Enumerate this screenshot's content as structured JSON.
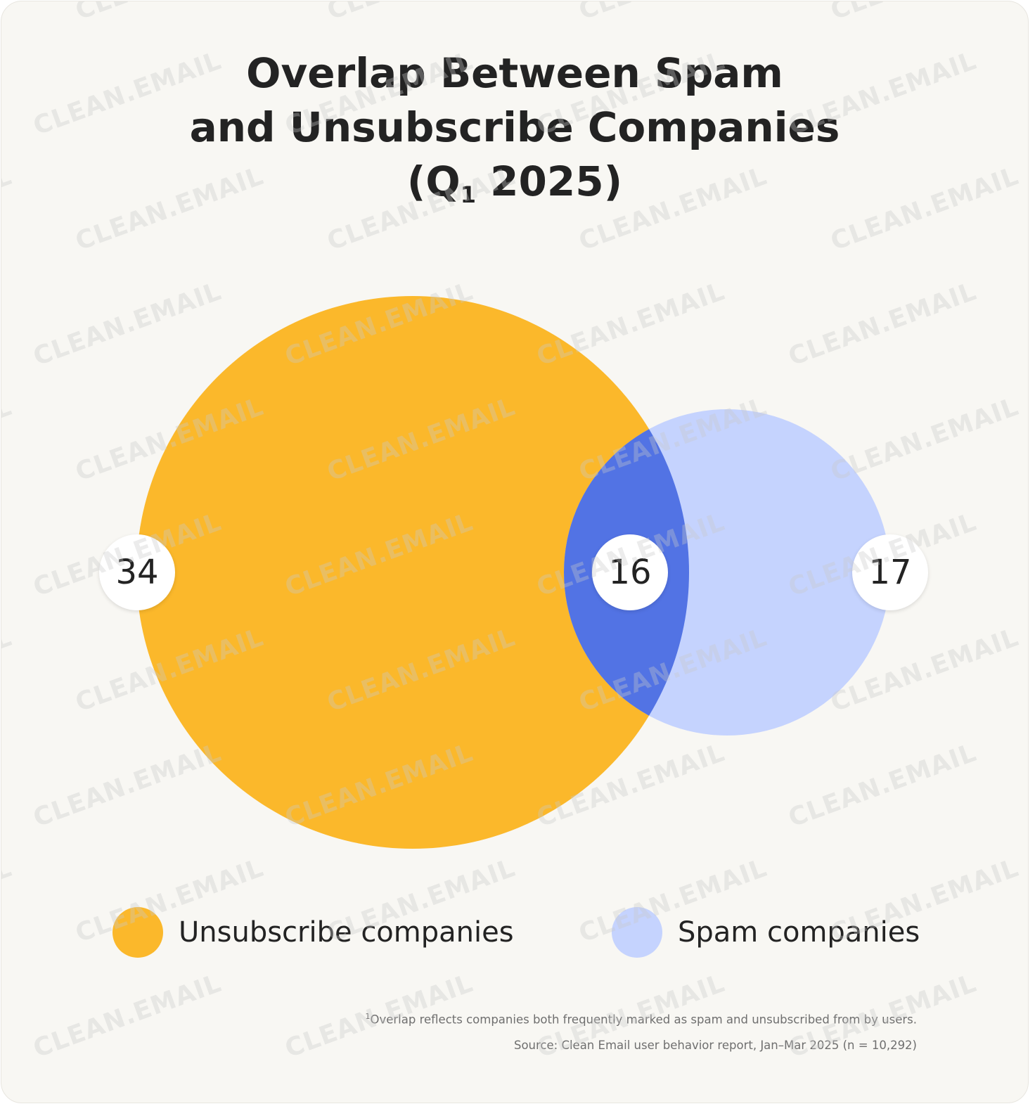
{
  "chart_data": {
    "type": "venn",
    "title": {
      "line1": "Overlap Between Spam",
      "line2": "and Unsubscribe Companies",
      "line3_open": "(Q",
      "line3_sub": "1",
      "line3_close": " 2025)"
    },
    "sets": [
      {
        "name": "Unsubscribe companies",
        "only_value": "34",
        "color": "#fbb82b"
      },
      {
        "name": "Spam companies",
        "only_value": "17",
        "color": "#c5d3fe"
      }
    ],
    "intersection": {
      "value": "16",
      "color": "#5273e4"
    }
  },
  "legend": {
    "placement": "bottom",
    "items": [
      {
        "label": "Unsubscribe companies",
        "color": "#fbb82b"
      },
      {
        "label": "Spam companies",
        "color": "#c5d3fe"
      }
    ]
  },
  "footnote": {
    "marker": "1",
    "text": "Overlap reflects companies both frequently marked as spam and unsubscribed from by users."
  },
  "source": "Source: Clean Email user behavior report, Jan–Mar 2025 (n = 10,292)",
  "watermark": {
    "text": "CLEAN.EMAIL",
    "color": "#c8c8c8"
  }
}
